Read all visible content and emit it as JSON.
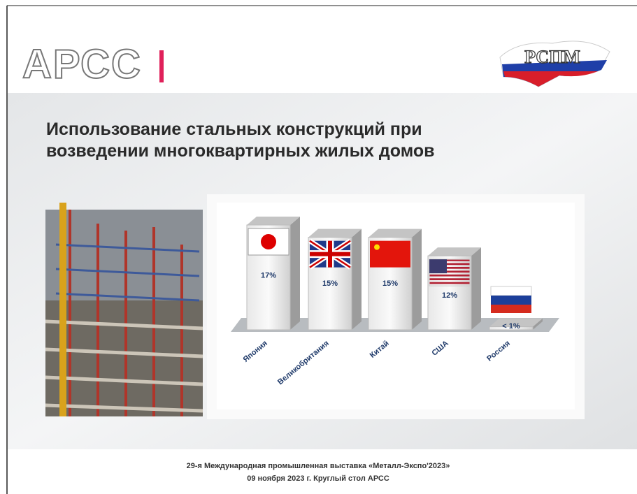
{
  "header": {
    "logo_left": "АРСС",
    "logo_right": "РСПМ"
  },
  "chart_data": {
    "type": "bar3d",
    "title": "Использование стальных конструкций при возведении многоквартирных жилых домов",
    "categories": [
      "Япония",
      "Великобритания",
      "Китай",
      "США",
      "Россия"
    ],
    "values": [
      17,
      15,
      15,
      12,
      0.5
    ],
    "value_labels": [
      "17%",
      "15%",
      "15%",
      "12%",
      "< 1%"
    ],
    "color": "#d9d9d9"
  },
  "footer": {
    "lines": [
      "29-я Международная промышленная выставка «Металл-Экспо'2023»",
      "09 ноября 2023 г. Круглый стол АРСС"
    ]
  }
}
